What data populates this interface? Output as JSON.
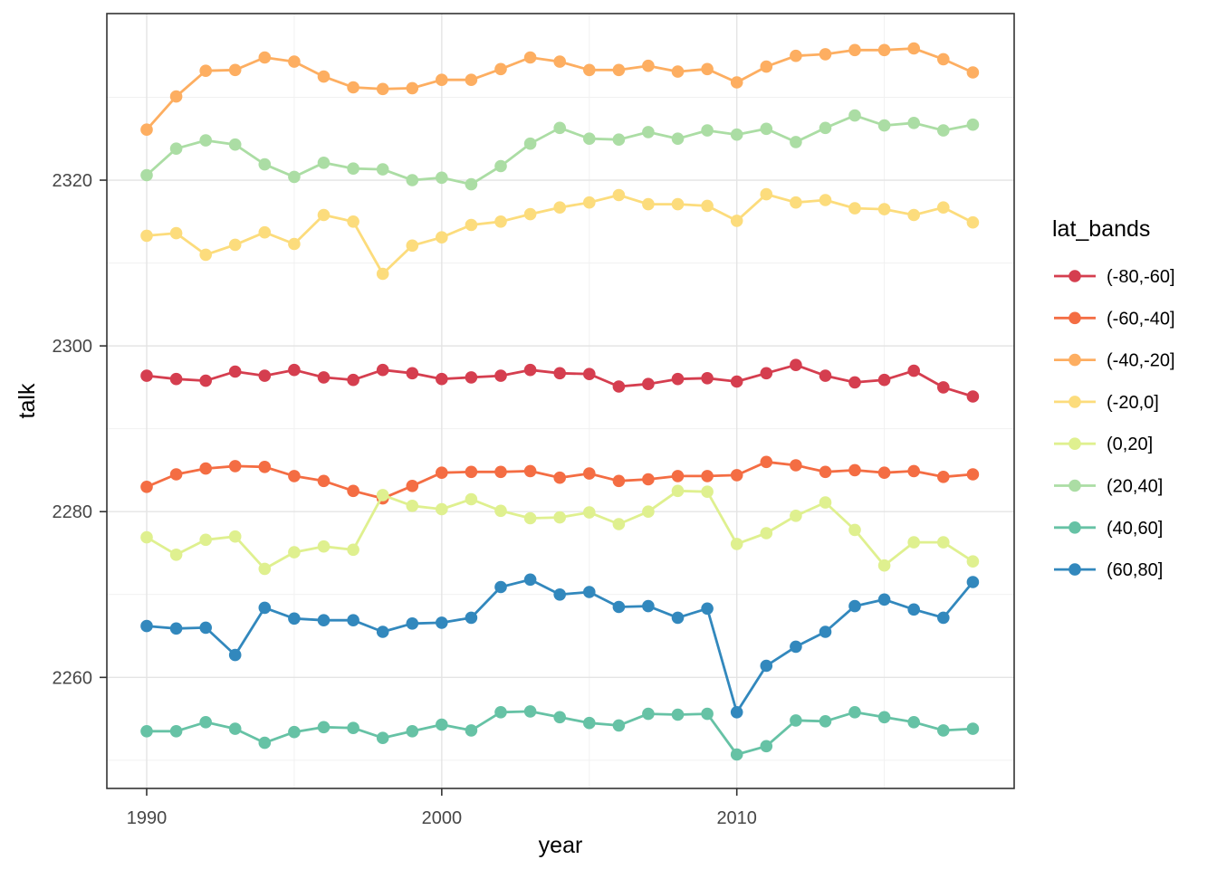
{
  "chart_data": {
    "type": "line",
    "title": "",
    "xlabel": "year",
    "ylabel": "talk",
    "legend_title": "lat_bands",
    "legend_position": "right",
    "grid": "on",
    "marker": "point-on-line",
    "xlim": [
      1988.65,
      2019.4
    ],
    "ylim": [
      2246.6,
      2340.1
    ],
    "x_ticks": [
      1990,
      2000,
      2010
    ],
    "x_tick_labels": [
      "1990",
      "2000",
      "2010"
    ],
    "x_minor_ticks": [
      1995,
      2005,
      2015
    ],
    "y_ticks": [
      2260,
      2280,
      2300,
      2320
    ],
    "y_tick_labels": [
      "2260",
      "2280",
      "2300",
      "2320"
    ],
    "y_minor_ticks": [
      2250,
      2270,
      2290,
      2310,
      2330
    ],
    "x": [
      1990,
      1991,
      1992,
      1993,
      1994,
      1995,
      1996,
      1997,
      1998,
      1999,
      2000,
      2001,
      2002,
      2003,
      2004,
      2005,
      2006,
      2007,
      2008,
      2009,
      2010,
      2011,
      2012,
      2013,
      2014,
      2015,
      2016,
      2017,
      2018
    ],
    "series": [
      {
        "name": "(-80,-60]",
        "color": "#D53E4F",
        "values": [
          2296.4,
          2296.0,
          2295.8,
          2296.9,
          2296.4,
          2297.1,
          2296.2,
          2295.9,
          2297.1,
          2296.7,
          2296.0,
          2296.2,
          2296.4,
          2297.1,
          2296.7,
          2296.6,
          2295.1,
          2295.4,
          2296.0,
          2296.1,
          2295.7,
          2296.7,
          2297.7,
          2296.4,
          2295.6,
          2295.9,
          2297.0,
          2295.0,
          2293.9
        ]
      },
      {
        "name": "(-60,-40]",
        "color": "#F46D43",
        "values": [
          2283.0,
          2284.5,
          2285.2,
          2285.5,
          2285.4,
          2284.3,
          2283.7,
          2282.5,
          2281.6,
          2283.1,
          2284.7,
          2284.8,
          2284.8,
          2284.9,
          2284.1,
          2284.6,
          2283.7,
          2283.9,
          2284.3,
          2284.3,
          2284.4,
          2286.0,
          2285.6,
          2284.8,
          2285.0,
          2284.7,
          2284.9,
          2284.2,
          2284.5
        ]
      },
      {
        "name": "(-40,-20]",
        "color": "#FDAE61",
        "values": [
          2326.1,
          2330.1,
          2333.2,
          2333.3,
          2334.8,
          2334.3,
          2332.5,
          2331.2,
          2331.0,
          2331.1,
          2332.1,
          2332.1,
          2333.4,
          2334.8,
          2334.3,
          2333.3,
          2333.3,
          2333.8,
          2333.1,
          2333.4,
          2331.8,
          2333.7,
          2335.0,
          2335.2,
          2335.7,
          2335.7,
          2335.9,
          2334.6,
          2333.0
        ]
      },
      {
        "name": "(-20,0]",
        "color": "#FCDC7C",
        "values": [
          2313.3,
          2313.6,
          2311.0,
          2312.2,
          2313.7,
          2312.3,
          2315.8,
          2315.0,
          2308.7,
          2312.1,
          2313.1,
          2314.6,
          2315.0,
          2315.9,
          2316.7,
          2317.3,
          2318.2,
          2317.1,
          2317.1,
          2316.9,
          2315.1,
          2318.3,
          2317.3,
          2317.6,
          2316.6,
          2316.5,
          2315.8,
          2316.7,
          2314.9
        ]
      },
      {
        "name": "(0,20]",
        "color": "#DFF08F",
        "values": [
          2276.9,
          2274.8,
          2276.6,
          2277.0,
          2273.1,
          2275.1,
          2275.8,
          2275.4,
          2282.0,
          2280.7,
          2280.3,
          2281.5,
          2280.1,
          2279.2,
          2279.3,
          2279.9,
          2278.5,
          2280.0,
          2282.5,
          2282.4,
          2276.1,
          2277.4,
          2279.5,
          2281.1,
          2277.8,
          2273.5,
          2276.3,
          2276.3,
          2274.0
        ]
      },
      {
        "name": "(20,40]",
        "color": "#ABDDA4",
        "values": [
          2320.6,
          2323.8,
          2324.8,
          2324.3,
          2321.9,
          2320.4,
          2322.1,
          2321.4,
          2321.3,
          2320.0,
          2320.3,
          2319.5,
          2321.7,
          2324.4,
          2326.3,
          2325.0,
          2324.9,
          2325.8,
          2325.0,
          2326.0,
          2325.5,
          2326.2,
          2324.6,
          2326.3,
          2327.8,
          2326.6,
          2326.9,
          2326.0,
          2326.7
        ]
      },
      {
        "name": "(40,60]",
        "color": "#66C2A5",
        "values": [
          2253.5,
          2253.5,
          2254.6,
          2253.8,
          2252.1,
          2253.4,
          2254.0,
          2253.9,
          2252.7,
          2253.5,
          2254.3,
          2253.6,
          2255.8,
          2255.9,
          2255.2,
          2254.5,
          2254.2,
          2255.6,
          2255.5,
          2255.6,
          2250.7,
          2251.7,
          2254.8,
          2254.7,
          2255.8,
          2255.2,
          2254.6,
          2253.6,
          2253.8
        ]
      },
      {
        "name": "(60,80]",
        "color": "#3288BD",
        "values": [
          2266.2,
          2265.9,
          2266.0,
          2262.7,
          2268.4,
          2267.1,
          2266.9,
          2266.9,
          2265.5,
          2266.5,
          2266.6,
          2267.2,
          2270.9,
          2271.8,
          2270.0,
          2270.3,
          2268.5,
          2268.6,
          2267.2,
          2268.3,
          2255.8,
          2261.4,
          2263.7,
          2265.5,
          2268.6,
          2269.4,
          2268.2,
          2267.2,
          2271.5
        ]
      }
    ]
  }
}
